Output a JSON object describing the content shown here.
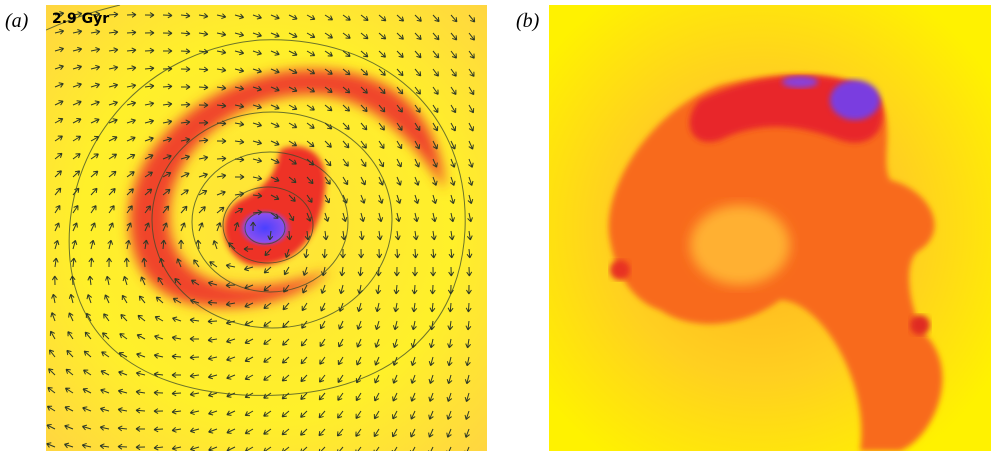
{
  "panels": [
    {
      "label": "(a)",
      "time": "2.9 Gyr"
    },
    {
      "label": "(b)"
    }
  ]
}
